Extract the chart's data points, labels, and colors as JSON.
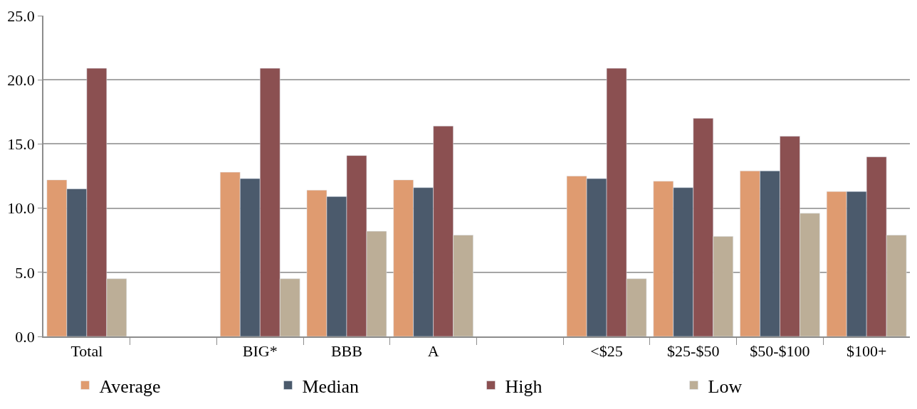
{
  "chart_data": {
    "type": "bar",
    "categories": [
      "Total",
      null,
      "BIG*",
      "BBB",
      "A",
      null,
      "<$25",
      "$25-$50",
      "$50-$100",
      "$100+"
    ],
    "series": [
      {
        "name": "Average",
        "color": "#df9b70",
        "values": [
          12.2,
          null,
          12.8,
          11.4,
          12.2,
          null,
          12.5,
          12.1,
          12.9,
          11.3
        ]
      },
      {
        "name": "Median",
        "color": "#4b5a6c",
        "values": [
          11.5,
          null,
          12.3,
          10.9,
          11.6,
          null,
          12.3,
          11.6,
          12.9,
          11.3
        ]
      },
      {
        "name": "High",
        "color": "#8b5051",
        "values": [
          20.9,
          null,
          20.9,
          14.1,
          16.4,
          null,
          20.9,
          17.0,
          15.6,
          14.0
        ]
      },
      {
        "name": "Low",
        "color": "#bcae97",
        "values": [
          4.5,
          null,
          4.5,
          8.2,
          7.9,
          null,
          4.5,
          7.8,
          9.6,
          7.9
        ]
      }
    ],
    "ylim": [
      0,
      25
    ],
    "yticks": [
      {
        "value": 0,
        "label": "0.0"
      },
      {
        "value": 5,
        "label": "5.0"
      },
      {
        "value": 10,
        "label": "10.0"
      },
      {
        "value": 15,
        "label": "15.0"
      },
      {
        "value": 20,
        "label": "20.0"
      },
      {
        "value": 25,
        "label": "25.0"
      }
    ],
    "grid": "y",
    "legend": "bottom"
  }
}
